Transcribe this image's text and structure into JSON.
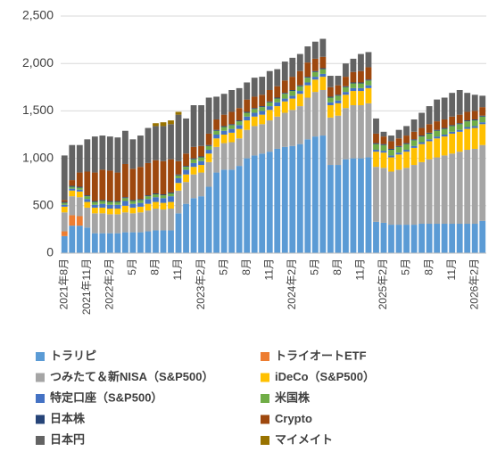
{
  "chart_data": {
    "type": "stacked_bar",
    "categories": [
      "2021年8月",
      null,
      null,
      "2021年11月",
      null,
      null,
      "2022年2月",
      null,
      null,
      "5月",
      null,
      null,
      "8月",
      null,
      null,
      "11月",
      null,
      null,
      "2023年2月",
      null,
      null,
      "5月",
      null,
      null,
      "8月",
      null,
      null,
      "11月",
      null,
      null,
      "2024年2月",
      null,
      null,
      "5月",
      null,
      null,
      "8月",
      null,
      null,
      "11月",
      null,
      null,
      "2025年2月",
      null,
      null,
      "5月",
      null,
      null,
      "8月",
      null,
      null,
      "11月",
      null,
      null,
      "2026年2月",
      null
    ],
    "ylim": [
      0,
      2500
    ],
    "yticks": [
      0,
      500,
      {
        "value": 1000,
        "label": "1,000"
      },
      {
        "value": 1500,
        "label": "1,500"
      },
      {
        "value": 2000,
        "label": "2,000"
      },
      {
        "value": 2500,
        "label": "2,500"
      }
    ],
    "grid": true,
    "series": [
      {
        "name": "トラリピ",
        "color": "#5b9bd5",
        "values": [
          180,
          290,
          290,
          270,
          210,
          210,
          210,
          210,
          220,
          220,
          220,
          230,
          240,
          240,
          240,
          420,
          520,
          580,
          600,
          700,
          850,
          880,
          880,
          920,
          1000,
          1030,
          1050,
          1070,
          1100,
          1120,
          1130,
          1150,
          1200,
          1230,
          1240,
          930,
          930,
          990,
          1000,
          1000,
          1010,
          330,
          320,
          300,
          300,
          300,
          300,
          310,
          310,
          310,
          310,
          310,
          310,
          310,
          310,
          340
        ]
      },
      {
        "name": "トライオートETF",
        "color": "#ed7d31",
        "values": [
          50,
          110,
          100,
          0,
          0,
          0,
          0,
          0,
          0,
          0,
          0,
          0,
          0,
          0,
          0,
          0,
          0,
          0,
          0,
          0,
          0,
          0,
          0,
          0,
          0,
          0,
          0,
          0,
          0,
          0,
          0,
          0,
          0,
          0,
          0,
          0,
          0,
          0,
          0,
          0,
          0,
          0,
          0,
          0,
          0,
          0,
          0,
          0,
          0,
          0,
          0,
          0,
          0,
          0,
          0,
          0
        ]
      },
      {
        "name": "つみたて＆新NISA（S&P500）",
        "color": "#a5a5a5",
        "values": [
          200,
          200,
          200,
          210,
          210,
          210,
          200,
          200,
          210,
          200,
          210,
          220,
          230,
          220,
          230,
          240,
          230,
          250,
          250,
          260,
          270,
          280,
          290,
          290,
          300,
          310,
          310,
          330,
          340,
          360,
          380,
          400,
          440,
          470,
          480,
          500,
          520,
          540,
          560,
          560,
          570,
          580,
          580,
          560,
          580,
          600,
          630,
          650,
          680,
          700,
          720,
          740,
          760,
          780,
          790,
          800
        ]
      },
      {
        "name": "iDeCo（S&P500）",
        "color": "#ffc000",
        "values": [
          60,
          60,
          60,
          60,
          60,
          60,
          60,
          60,
          70,
          60,
          60,
          70,
          70,
          70,
          70,
          80,
          80,
          80,
          80,
          90,
          90,
          90,
          100,
          100,
          100,
          100,
          100,
          110,
          110,
          120,
          120,
          130,
          130,
          130,
          140,
          130,
          130,
          140,
          150,
          150,
          160,
          160,
          160,
          150,
          160,
          170,
          180,
          190,
          190,
          200,
          200,
          210,
          210,
          220,
          220,
          220
        ]
      },
      {
        "name": "特定口座（S&P500）",
        "color": "#4472c4",
        "values": [
          20,
          20,
          20,
          30,
          30,
          40,
          40,
          40,
          50,
          40,
          40,
          50,
          50,
          50,
          60,
          50,
          50,
          40,
          40,
          40,
          40,
          40,
          40,
          40,
          40,
          40,
          40,
          40,
          40,
          30,
          30,
          30,
          30,
          30,
          30,
          30,
          30,
          30,
          30,
          30,
          30,
          20,
          20,
          20,
          20,
          20,
          20,
          20,
          20,
          20,
          20,
          20,
          20,
          20,
          20,
          20
        ]
      },
      {
        "name": "米国株",
        "color": "#70ad47",
        "values": [
          20,
          20,
          20,
          30,
          30,
          30,
          30,
          30,
          30,
          30,
          30,
          30,
          30,
          30,
          30,
          30,
          30,
          40,
          40,
          40,
          40,
          40,
          40,
          40,
          40,
          40,
          40,
          40,
          40,
          50,
          50,
          50,
          50,
          50,
          50,
          50,
          50,
          50,
          50,
          50,
          50,
          60,
          60,
          60,
          60,
          60,
          60,
          60,
          60,
          60,
          60,
          60,
          60,
          60,
          60,
          60
        ]
      },
      {
        "name": "日本株",
        "color": "#264478",
        "values": [
          10,
          10,
          10,
          10,
          10,
          10,
          10,
          10,
          10,
          10,
          10,
          10,
          10,
          10,
          10,
          10,
          10,
          10,
          10,
          10,
          10,
          10,
          10,
          10,
          10,
          10,
          10,
          10,
          10,
          10,
          10,
          10,
          10,
          10,
          10,
          10,
          10,
          10,
          10,
          10,
          10,
          10,
          10,
          10,
          10,
          10,
          10,
          10,
          10,
          10,
          10,
          10,
          10,
          10,
          10,
          10
        ]
      },
      {
        "name": "Crypto",
        "color": "#9e480e",
        "values": [
          20,
          60,
          150,
          250,
          300,
          320,
          320,
          300,
          350,
          330,
          340,
          340,
          350,
          350,
          350,
          140,
          130,
          120,
          110,
          120,
          110,
          120,
          130,
          130,
          130,
          120,
          120,
          120,
          120,
          130,
          140,
          150,
          150,
          130,
          120,
          100,
          100,
          100,
          110,
          120,
          130,
          100,
          80,
          80,
          80,
          80,
          80,
          80,
          90,
          90,
          90,
          90,
          90,
          90,
          90,
          90
        ]
      },
      {
        "name": "日本円",
        "color": "#636363",
        "values": [
          470,
          370,
          290,
          340,
          380,
          360,
          360,
          370,
          350,
          310,
          330,
          370,
          360,
          370,
          370,
          490,
          370,
          440,
          430,
          380,
          240,
          220,
          230,
          210,
          180,
          200,
          190,
          200,
          180,
          200,
          200,
          180,
          170,
          180,
          190,
          120,
          100,
          140,
          140,
          180,
          160,
          160,
          50,
          60,
          90,
          100,
          130,
          160,
          190,
          230,
          230,
          250,
          260,
          200,
          170,
          120
        ]
      },
      {
        "name": "マイメイト",
        "color": "#997300",
        "values": [
          0,
          0,
          0,
          0,
          0,
          0,
          0,
          0,
          0,
          0,
          0,
          0,
          30,
          40,
          40,
          30,
          0,
          0,
          0,
          0,
          0,
          0,
          0,
          0,
          0,
          0,
          0,
          0,
          0,
          0,
          0,
          0,
          0,
          0,
          0,
          0,
          0,
          0,
          0,
          0,
          0,
          0,
          0,
          0,
          0,
          0,
          0,
          0,
          0,
          0,
          0,
          0,
          0,
          0,
          0,
          0
        ]
      }
    ]
  }
}
